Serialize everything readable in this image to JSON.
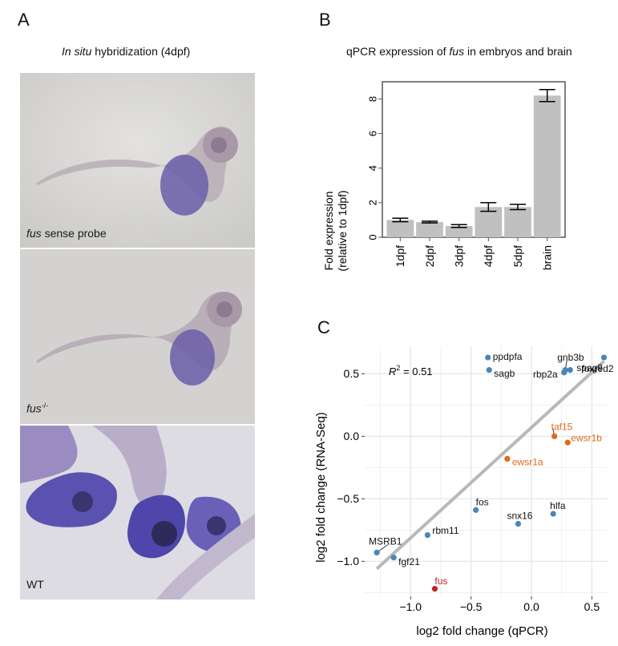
{
  "panelA": {
    "letter": "A",
    "title_italic": "In situ",
    "title_rest": " hybridization (4dpf)",
    "photos": [
      {
        "label_italic": "fus",
        "label_rest": " sense probe"
      },
      {
        "label_italic": "fus",
        "label_sup": "-/-",
        "label_rest": ""
      },
      {
        "label_italic": "",
        "label_rest": "WT"
      }
    ]
  },
  "panelB": {
    "letter": "B",
    "title_pre": "qPCR expression of ",
    "title_italic": "fus",
    "title_post": " in embryos and brain"
  },
  "panelC": {
    "letter": "C"
  },
  "colors": {
    "bar": "#c0c0c0",
    "blue": "#4a86b8",
    "orange": "#e06a1a",
    "red": "#c0202a",
    "fit": "#b8b8b8"
  },
  "chart_data": [
    {
      "type": "bar",
      "categories": [
        "1dpf",
        "2dpf",
        "3dpf",
        "4dpf",
        "5dpf",
        "brain"
      ],
      "values": [
        1.0,
        0.88,
        0.65,
        1.75,
        1.75,
        8.2
      ],
      "errors": [
        0.1,
        0.05,
        0.08,
        0.25,
        0.15,
        0.35
      ],
      "ylabel": [
        "Fold expression",
        "(relative to 1dpf)"
      ],
      "ylim": [
        0,
        9
      ],
      "yticks": [
        0,
        2,
        4,
        6,
        8
      ],
      "grid": false
    },
    {
      "type": "scatter",
      "xlabel": "log2 fold change (qPCR)",
      "ylabel": "log2 fold change (RNA-Seq)",
      "xlim": [
        -1.38,
        0.63
      ],
      "ylim": [
        -1.28,
        0.72
      ],
      "xticks": [
        -1.0,
        -0.5,
        0.0,
        0.5
      ],
      "xtick_labels": [
        "−1.0",
        "−0.5",
        "0.0",
        "0.5"
      ],
      "yticks": [
        -1.0,
        -0.5,
        0.0,
        0.5
      ],
      "ytick_labels": [
        "−1.0",
        "−0.5",
        "0.0",
        "0.5"
      ],
      "grid": true,
      "annotation": {
        "r": "R",
        "sup": "2",
        "rest": " = 0.51"
      },
      "fit_line": {
        "x": [
          -1.28,
          0.6
        ],
        "y": [
          -1.06,
          0.6
        ]
      },
      "points": [
        {
          "label": "ppdpfa",
          "x": -0.36,
          "y": 0.63,
          "color": "blue"
        },
        {
          "label": "sagb",
          "x": -0.35,
          "y": 0.53,
          "color": "blue"
        },
        {
          "label": "gnb3b",
          "x": 0.28,
          "y": 0.53,
          "color": "blue"
        },
        {
          "label": "rbp2a",
          "x": 0.27,
          "y": 0.51,
          "color": "blue"
        },
        {
          "label": "spag9",
          "x": 0.32,
          "y": 0.53,
          "color": "blue"
        },
        {
          "label": "foxred2",
          "x": 0.6,
          "y": 0.63,
          "color": "blue"
        },
        {
          "label": "taf15",
          "x": 0.19,
          "y": 0.0,
          "color": "orange"
        },
        {
          "label": "ewsr1b",
          "x": 0.3,
          "y": -0.05,
          "color": "orange"
        },
        {
          "label": "ewsr1a",
          "x": -0.2,
          "y": -0.18,
          "color": "orange"
        },
        {
          "label": "fos",
          "x": -0.46,
          "y": -0.59,
          "color": "blue"
        },
        {
          "label": "hlfa",
          "x": 0.18,
          "y": -0.62,
          "color": "blue"
        },
        {
          "label": "snx16",
          "x": -0.11,
          "y": -0.7,
          "color": "blue"
        },
        {
          "label": "rbm11",
          "x": -0.86,
          "y": -0.79,
          "color": "blue"
        },
        {
          "label": "MSRB1",
          "x": -1.28,
          "y": -0.93,
          "color": "blue"
        },
        {
          "label": "fgf21",
          "x": -1.14,
          "y": -0.97,
          "color": "blue"
        },
        {
          "label": "fus",
          "x": -0.8,
          "y": -1.22,
          "color": "red"
        }
      ]
    }
  ]
}
